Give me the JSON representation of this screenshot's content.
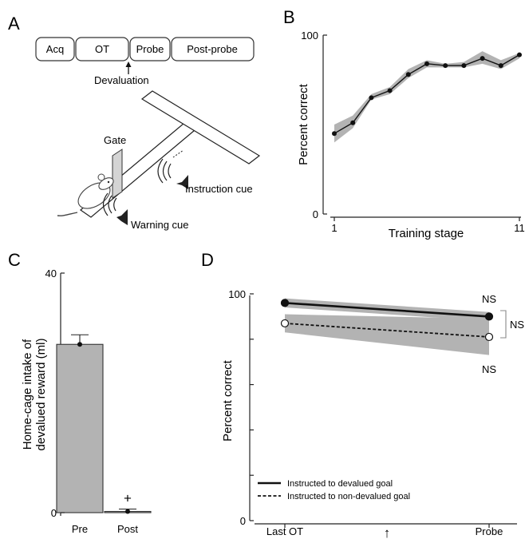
{
  "panels": {
    "A": {
      "label": "A",
      "stages": [
        "Acq",
        "OT",
        "Probe",
        "Post-probe"
      ],
      "devaluation_label": "Devaluation",
      "gate_label": "Gate",
      "instruction_cue_label": "Instruction cue",
      "warning_cue_label": "Warning cue"
    },
    "B": {
      "label": "B"
    },
    "C": {
      "label": "C"
    },
    "D": {
      "label": "D"
    }
  },
  "chart_data": [
    {
      "panel": "B",
      "type": "line",
      "x": [
        1,
        2,
        3,
        4,
        5,
        6,
        7,
        8,
        9,
        10,
        11
      ],
      "series": [
        {
          "values": [
            45,
            51,
            65,
            69,
            78,
            84,
            83,
            83,
            87,
            83,
            89
          ],
          "band_lower": [
            40,
            48,
            64,
            67,
            76,
            82,
            82,
            82,
            84,
            81,
            87
          ],
          "band_upper": [
            50,
            55,
            67,
            71,
            81,
            86,
            84,
            85,
            91,
            86,
            90
          ]
        }
      ],
      "xlabel": "Training stage",
      "ylabel": "Percent correct",
      "xticks": [
        "1",
        "11"
      ],
      "yticks": [
        "0",
        "100"
      ],
      "xlim": [
        1,
        11
      ],
      "ylim": [
        0,
        100
      ],
      "band_color": "#b3b3b3"
    },
    {
      "panel": "C",
      "type": "bar",
      "categories": [
        "Pre",
        "Post"
      ],
      "values": [
        28.1,
        0.2
      ],
      "error_upper": [
        29.7,
        0.6
      ],
      "ylabel": "Home-cage intake of devalued reward (ml)",
      "ylabel_lines": [
        "Home-cage intake of",
        "devalued reward (ml)"
      ],
      "yticks": [
        "0",
        "40"
      ],
      "ylim": [
        0,
        40
      ],
      "annotations": [
        "+"
      ],
      "bar_color": "#b3b3b3"
    },
    {
      "panel": "D",
      "type": "line",
      "x": [
        "Last OT",
        "Probe"
      ],
      "series": [
        {
          "name": "Instructed to devalued goal",
          "values": [
            96,
            90
          ],
          "band_lower": [
            94,
            88
          ],
          "band_upper": [
            98,
            92
          ],
          "marker": "filled",
          "line": "solid"
        },
        {
          "name": "Instructed to non-devalued goal",
          "values": [
            87,
            81
          ],
          "band_lower": [
            83,
            73
          ],
          "band_upper": [
            91,
            89
          ],
          "marker": "open",
          "line": "dashed"
        }
      ],
      "ylabel": "Percent correct",
      "yticks": [
        "0",
        "100"
      ],
      "ylim": [
        0,
        100
      ],
      "annotations": [
        "NS",
        "NS",
        "NS"
      ],
      "arrow": "↑",
      "legend": "bottom-left",
      "band_color": "#b3b3b3"
    }
  ]
}
